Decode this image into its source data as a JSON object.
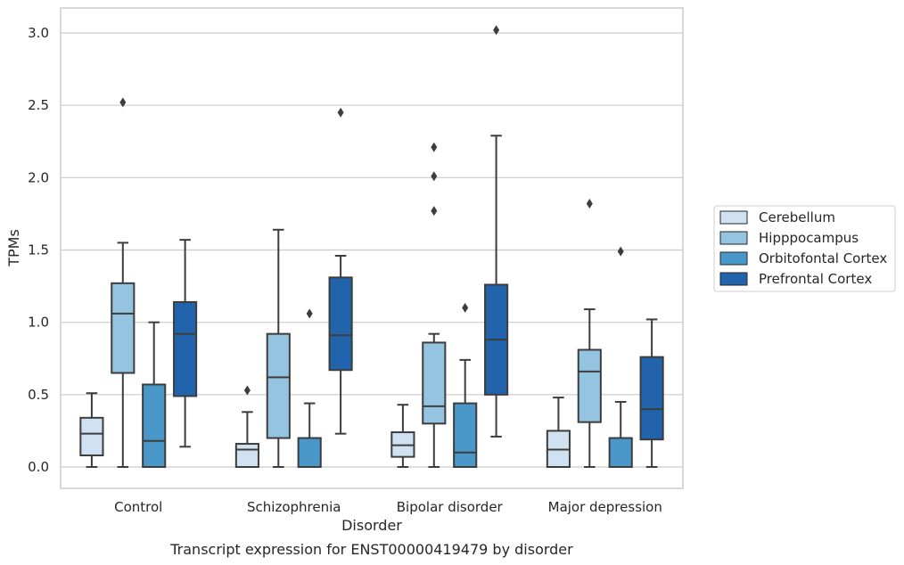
{
  "chart_data": {
    "type": "box",
    "title": "",
    "caption": "Transcript expression for ENST00000419479 by disorder",
    "xlabel": "Disorder",
    "ylabel": "TPMs",
    "ylim": [
      -0.15,
      3.18
    ],
    "yticks": [
      "0.0",
      "0.5",
      "1.0",
      "1.5",
      "2.0",
      "2.5",
      "3.0"
    ],
    "grid": "horizontal",
    "legend_position": "right",
    "categories": [
      "Control",
      "Schizophrenia",
      "Bipolar disorder",
      "Major depression"
    ],
    "series": [
      {
        "name": "Cerebellum",
        "color": "#d0e1f2",
        "boxes": [
          {
            "whislo": 0.0,
            "q1": 0.08,
            "med": 0.23,
            "q3": 0.34,
            "whishi": 0.51,
            "fliers": []
          },
          {
            "whislo": 0.0,
            "q1": 0.0,
            "med": 0.12,
            "q3": 0.16,
            "whishi": 0.38,
            "fliers": [
              0.53
            ]
          },
          {
            "whislo": 0.0,
            "q1": 0.07,
            "med": 0.15,
            "q3": 0.24,
            "whishi": 0.43,
            "fliers": []
          },
          {
            "whislo": 0.0,
            "q1": 0.0,
            "med": 0.12,
            "q3": 0.25,
            "whishi": 0.48,
            "fliers": []
          }
        ]
      },
      {
        "name": "Hipppocampus",
        "color": "#94c4df",
        "boxes": [
          {
            "whislo": 0.0,
            "q1": 0.65,
            "med": 1.06,
            "q3": 1.27,
            "whishi": 1.55,
            "fliers": [
              2.52
            ]
          },
          {
            "whislo": 0.0,
            "q1": 0.2,
            "med": 0.62,
            "q3": 0.92,
            "whishi": 1.64,
            "fliers": []
          },
          {
            "whislo": 0.0,
            "q1": 0.3,
            "med": 0.42,
            "q3": 0.86,
            "whishi": 0.92,
            "fliers": [
              1.77,
              2.01,
              2.21
            ]
          },
          {
            "whislo": 0.0,
            "q1": 0.31,
            "med": 0.66,
            "q3": 0.81,
            "whishi": 1.09,
            "fliers": [
              1.82
            ]
          }
        ]
      },
      {
        "name": "Orbitofontal Cortex",
        "color": "#4a98c9",
        "boxes": [
          {
            "whislo": 0.0,
            "q1": 0.0,
            "med": 0.18,
            "q3": 0.57,
            "whishi": 1.0,
            "fliers": []
          },
          {
            "whislo": 0.0,
            "q1": 0.0,
            "med": 0.2,
            "q3": 0.2,
            "whishi": 0.44,
            "fliers": [
              1.06
            ]
          },
          {
            "whislo": 0.0,
            "q1": 0.0,
            "med": 0.1,
            "q3": 0.44,
            "whishi": 0.74,
            "fliers": [
              1.1
            ]
          },
          {
            "whislo": 0.0,
            "q1": 0.0,
            "med": 0.2,
            "q3": 0.2,
            "whishi": 0.45,
            "fliers": [
              1.49
            ]
          }
        ]
      },
      {
        "name": "Prefrontal Cortex",
        "color": "#2164ab",
        "boxes": [
          {
            "whislo": 0.14,
            "q1": 0.49,
            "med": 0.92,
            "q3": 1.14,
            "whishi": 1.57,
            "fliers": []
          },
          {
            "whislo": 0.23,
            "q1": 0.67,
            "med": 0.91,
            "q3": 1.31,
            "whishi": 1.46,
            "fliers": [
              2.45
            ]
          },
          {
            "whislo": 0.21,
            "q1": 0.5,
            "med": 0.88,
            "q3": 1.26,
            "whishi": 2.29,
            "fliers": [
              3.02
            ]
          },
          {
            "whislo": 0.0,
            "q1": 0.19,
            "med": 0.4,
            "q3": 0.76,
            "whishi": 1.02,
            "fliers": []
          }
        ]
      }
    ]
  }
}
